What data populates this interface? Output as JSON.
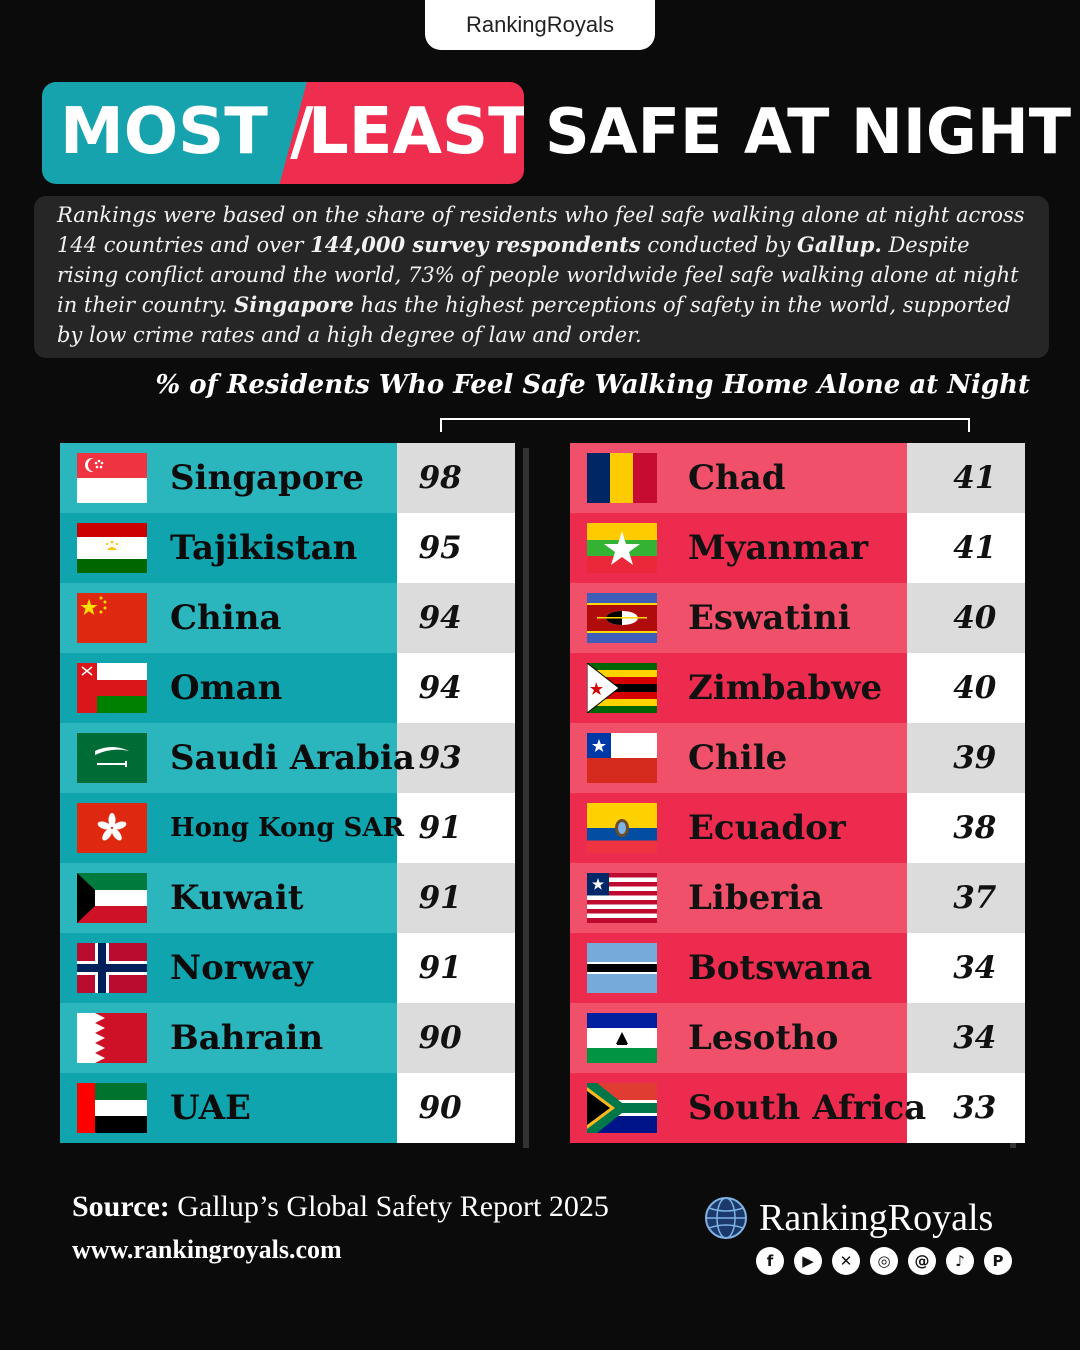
{
  "header_tab": "RankingRoyals",
  "title": {
    "most": "MOST /",
    "least": "LEAST",
    "rest": "SAFE AT NIGHT"
  },
  "description": {
    "p1": "Rankings were based on the share of residents who feel safe walking alone at night across 144 countries and over ",
    "b1": "144,000 survey respondents",
    "p2": " conducted by ",
    "b2": "Gallup.",
    "p3": " Despite rising conflict around the world, 73% of people worldwide feel safe walking alone at night in their country. ",
    "b3": "Singapore",
    "p4": " has the highest perceptions of safety in the world, supported by low crime rates and a high degree of law and order."
  },
  "chart_data": [
    {
      "type": "table",
      "title": "% of Residents Who Feel Safe Walking Home Alone at Night",
      "group": "MOST",
      "categories": [
        "Singapore",
        "Tajikistan",
        "China",
        "Oman",
        "Saudi Arabia",
        "Hong Kong SAR",
        "Kuwait",
        "Norway",
        "Bahrain",
        "UAE"
      ],
      "values": [
        98,
        95,
        94,
        94,
        93,
        91,
        91,
        91,
        90,
        90
      ],
      "flags": [
        "singapore-flag",
        "tajikistan-flag",
        "china-flag",
        "oman-flag",
        "saudi-arabia-flag",
        "hong-kong-flag",
        "kuwait-flag",
        "norway-flag",
        "bahrain-flag",
        "uae-flag"
      ]
    },
    {
      "type": "table",
      "title": "% of Residents Who Feel Safe Walking Home Alone at Night",
      "group": "LEAST",
      "categories": [
        "Chad",
        "Myanmar",
        "Eswatini",
        "Zimbabwe",
        "Chile",
        "Ecuador",
        "Liberia",
        "Botswana",
        "Lesotho",
        "South Africa"
      ],
      "values": [
        41,
        41,
        40,
        40,
        39,
        38,
        37,
        34,
        34,
        33
      ],
      "flags": [
        "chad-flag",
        "myanmar-flag",
        "eswatini-flag",
        "zimbabwe-flag",
        "chile-flag",
        "ecuador-flag",
        "liberia-flag",
        "botswana-flag",
        "lesotho-flag",
        "south-africa-flag"
      ]
    }
  ],
  "colors": {
    "teal_light": "#2bb5bd",
    "teal_dark": "#0fa4ae",
    "red_light": "#f0506a",
    "red_dark": "#ec2b4f",
    "value_light": "#dcdcdc",
    "value_dark": "#ffffff"
  },
  "footer": {
    "source_label": "Source:",
    "source_text": " Gallup’s Global Safety Report 2025",
    "url": "www.rankingroyals.com",
    "logo_text": "RankingRoyals",
    "socials": [
      "facebook-icon",
      "youtube-icon",
      "x-icon",
      "instagram-icon",
      "threads-icon",
      "tiktok-icon",
      "pinterest-icon"
    ]
  }
}
